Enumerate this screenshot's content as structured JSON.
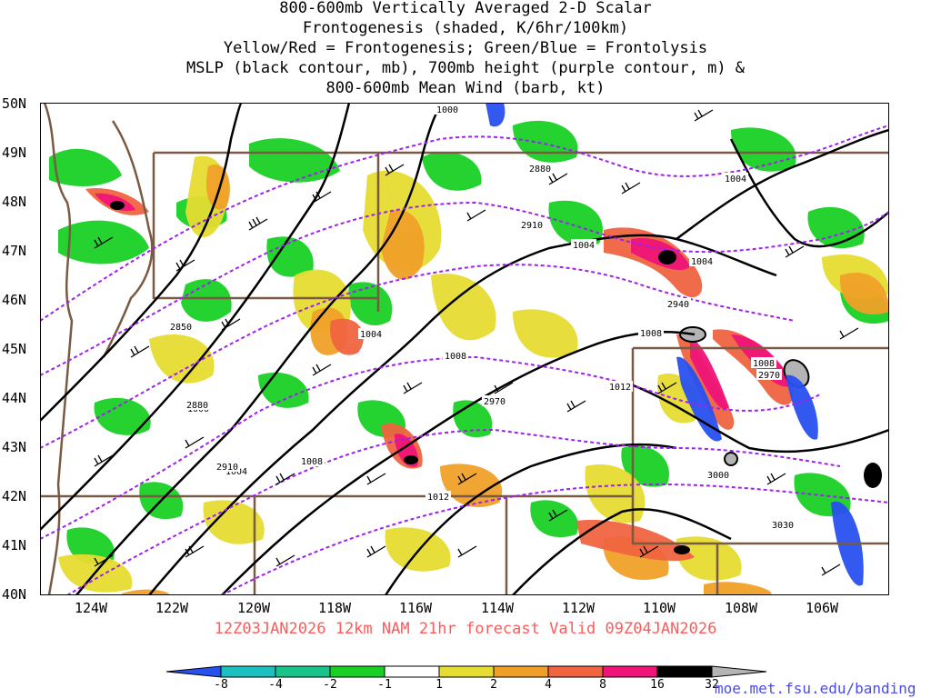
{
  "title": {
    "lines": [
      "800-600mb Vertically Averaged 2-D Scalar",
      "Frontogenesis (shaded, K/6hr/100km)",
      "Yellow/Red = Frontogenesis;  Green/Blue = Frontolysis",
      "MSLP (black contour, mb), 700mb height (purple contour, m) &",
      "800-600mb Mean Wind (barb, kt)"
    ]
  },
  "map": {
    "region": "Pacific Northwest / Northern Rockies",
    "lat_labels": [
      "50N",
      "49N",
      "48N",
      "47N",
      "46N",
      "45N",
      "44N",
      "43N",
      "42N",
      "41N",
      "40N"
    ],
    "lon_labels": [
      "124W",
      "122W",
      "120W",
      "118W",
      "116W",
      "114W",
      "112W",
      "110W",
      "108W",
      "106W"
    ],
    "mslp_labels": [
      "1000",
      "1004",
      "1004",
      "1004",
      "1004",
      "1008",
      "1008",
      "1008",
      "1012",
      "1012",
      "1004",
      "1008",
      "1000",
      "1004"
    ],
    "height_labels": [
      "2880",
      "2910",
      "2940",
      "2850",
      "2970",
      "2970",
      "3000",
      "3030",
      "2880",
      "2910"
    ],
    "colors": {
      "mslp": "#000000",
      "height": "#a020f0",
      "border": "#7b5a44",
      "barb": "#000000"
    }
  },
  "valid_line": "12Z03JAN2026 12km NAM 21hr forecast Valid 09Z04JAN2026",
  "colorbar": {
    "labels": [
      "-8",
      "-4",
      "-2",
      "-1",
      "1",
      "2",
      "4",
      "8",
      "16",
      "32"
    ],
    "colors": [
      "#2850f0",
      "#1cc0c0",
      "#19c48a",
      "#19d025",
      "#ffffff",
      "#e6dc32",
      "#f0a028",
      "#f06440",
      "#f01478",
      "#000000",
      "#b4b4b4"
    ]
  },
  "credit": "moe.met.fsu.edu/banding"
}
